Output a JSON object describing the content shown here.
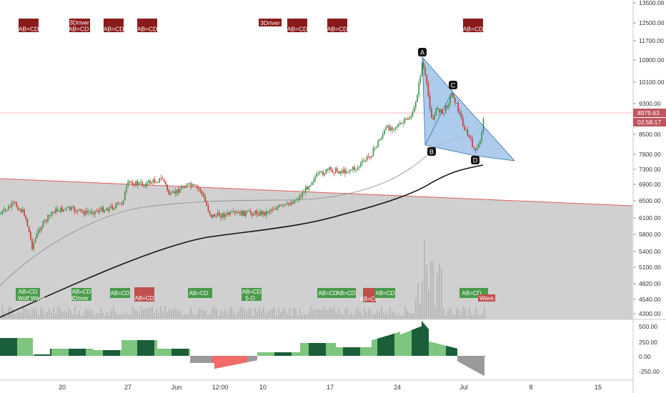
{
  "chart_data": {
    "type": "candlestick",
    "price_axis_ticks": [
      "13500.00",
      "12500.00",
      "11700.00",
      "10900.00",
      "10100.00",
      "9300.00",
      "8500.00",
      "7800.00",
      "7300.00",
      "6900.00",
      "6500.00",
      "6100.00",
      "5800.00",
      "5400.00",
      "5100.00",
      "4820.00",
      "4540.00",
      "4300.00"
    ],
    "current_price": "8979.63",
    "countdown": "02:58:17",
    "date_ticks": [
      "20",
      "27",
      "Jun",
      "12:00",
      "10",
      "17",
      "24",
      "Jul",
      "8",
      "15"
    ],
    "osc_ticks": [
      "500.00",
      "250.00",
      "0.00",
      "-250.00"
    ],
    "pattern_points": [
      "A",
      "B",
      "C",
      "D"
    ],
    "signals_top": [
      {
        "lines": [
          "AB=CD"
        ]
      },
      {
        "lines": [
          "3Driver",
          "AB=CD"
        ]
      },
      {
        "lines": [
          "AB=CD"
        ]
      },
      {
        "lines": [
          "AB=CD"
        ]
      },
      {
        "lines": [
          "3Driver"
        ]
      },
      {
        "lines": [
          "AB=CD"
        ]
      },
      {
        "lines": [
          "AB=CD"
        ]
      },
      {
        "lines": [
          "AB=CD"
        ]
      }
    ],
    "signals_bottom": [
      {
        "text": "AB=CD",
        "color": "green"
      },
      {
        "text": "Wolf Wave",
        "color": "green"
      },
      {
        "text": "AB=CD",
        "color": "green"
      },
      {
        "text": "3Driver",
        "color": "green"
      },
      {
        "text": "AB=CD",
        "color": "green"
      },
      {
        "text": "AB=CD",
        "color": "red"
      },
      {
        "text": "AB=CD",
        "color": "green"
      },
      {
        "text": "AB=CD",
        "color": "green"
      },
      {
        "text": "5-O",
        "color": "green"
      },
      {
        "text": "AB=CD",
        "color": "green"
      },
      {
        "text": "AB=CD",
        "color": "green"
      },
      {
        "text": "AB=CD",
        "color": "red"
      },
      {
        "text": "AB=CD",
        "color": "green"
      },
      {
        "text": "AB=CD",
        "color": "green"
      },
      {
        "text": "Wave",
        "color": "red"
      }
    ]
  },
  "colors": {
    "up": "#3a8f4a",
    "down": "#c0392b",
    "pattern_fill": "#9fc3ea",
    "channel_fill": "#d0d0d0",
    "signal_red": "#8b1a1a",
    "signal_green": "#4a9a4a",
    "osc_dark": "#1b5e3a",
    "osc_light": "#7fc47f",
    "osc_red": "#f26b6b",
    "osc_gray": "#9a9a9a"
  }
}
